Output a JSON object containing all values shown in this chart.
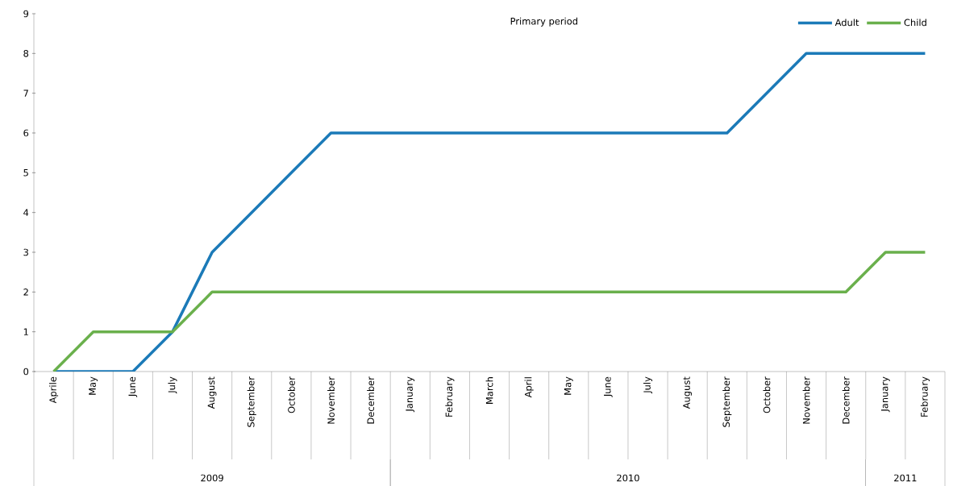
{
  "chart_data": {
    "type": "line",
    "title": "Primary period",
    "categories": [
      "Aprile",
      "May",
      "June",
      "July",
      "August",
      "September",
      "October",
      "November",
      "December",
      "January",
      "February",
      "March",
      "April",
      "May",
      "June",
      "July",
      "August",
      "September",
      "October",
      "November",
      "December",
      "January",
      "February"
    ],
    "series": [
      {
        "name": "Adult",
        "color": "#1b7ab8",
        "values": [
          0,
          0,
          0,
          1,
          3,
          4,
          5,
          6,
          6,
          6,
          6,
          6,
          6,
          6,
          6,
          6,
          6,
          6,
          7,
          8,
          8,
          8,
          8
        ]
      },
      {
        "name": "Child",
        "color": "#6ab04c",
        "values": [
          0,
          1,
          1,
          1,
          2,
          2,
          2,
          2,
          2,
          2,
          2,
          2,
          2,
          2,
          2,
          2,
          2,
          2,
          2,
          2,
          2,
          3,
          3
        ]
      }
    ],
    "ylim": [
      0,
      9
    ],
    "yticks": [
      0,
      1,
      2,
      3,
      4,
      5,
      6,
      7,
      8,
      9
    ],
    "annotations": [
      "2009",
      "2010",
      "2011"
    ],
    "grid": false,
    "legend": "top right",
    "marker": "none",
    "line_style": "solid"
  }
}
